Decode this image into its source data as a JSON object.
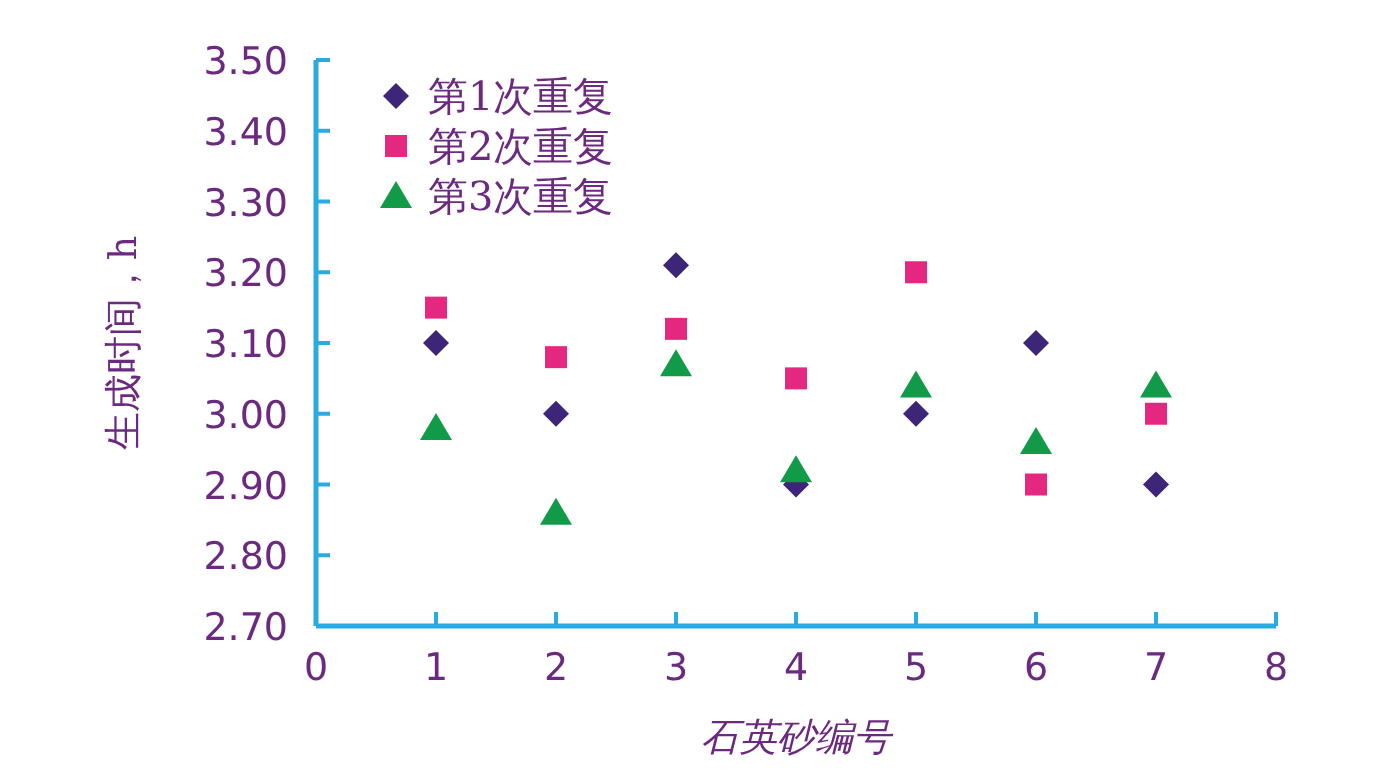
{
  "chart_data": {
    "type": "scatter",
    "xlabel": "石英砂编号",
    "ylabel": "生成时间，h",
    "x": [
      1,
      2,
      3,
      4,
      5,
      6,
      7
    ],
    "xlim": [
      0,
      8
    ],
    "xticks": [
      0,
      1,
      2,
      3,
      4,
      5,
      6,
      7,
      8
    ],
    "ylim": [
      2.7,
      3.5
    ],
    "yticks": [
      {
        "value": 2.7,
        "label": "2.70"
      },
      {
        "value": 2.8,
        "label": "2.80"
      },
      {
        "value": 2.9,
        "label": "2.90"
      },
      {
        "value": 3.0,
        "label": "3.00"
      },
      {
        "value": 3.1,
        "label": "3.10"
      },
      {
        "value": 3.2,
        "label": "3.20"
      },
      {
        "value": 3.3,
        "label": "3.30"
      },
      {
        "value": 3.4,
        "label": "3.40"
      },
      {
        "value": 3.5,
        "label": "3.50"
      }
    ],
    "legend": "top left",
    "grid": false,
    "series": [
      {
        "name": "第1次重复",
        "color": "#3d2577",
        "marker": "diamond",
        "values": [
          3.1,
          3.0,
          3.21,
          2.9,
          3.0,
          3.1,
          2.9
        ]
      },
      {
        "name": "第2次重复",
        "color": "#e4287f",
        "marker": "square",
        "values": [
          3.15,
          3.08,
          3.12,
          3.05,
          3.2,
          2.9,
          3.0
        ]
      },
      {
        "name": "第3次重复",
        "color": "#119a48",
        "marker": "triangle",
        "values": [
          2.98,
          2.86,
          3.07,
          2.92,
          3.04,
          2.96,
          3.04
        ]
      }
    ]
  }
}
